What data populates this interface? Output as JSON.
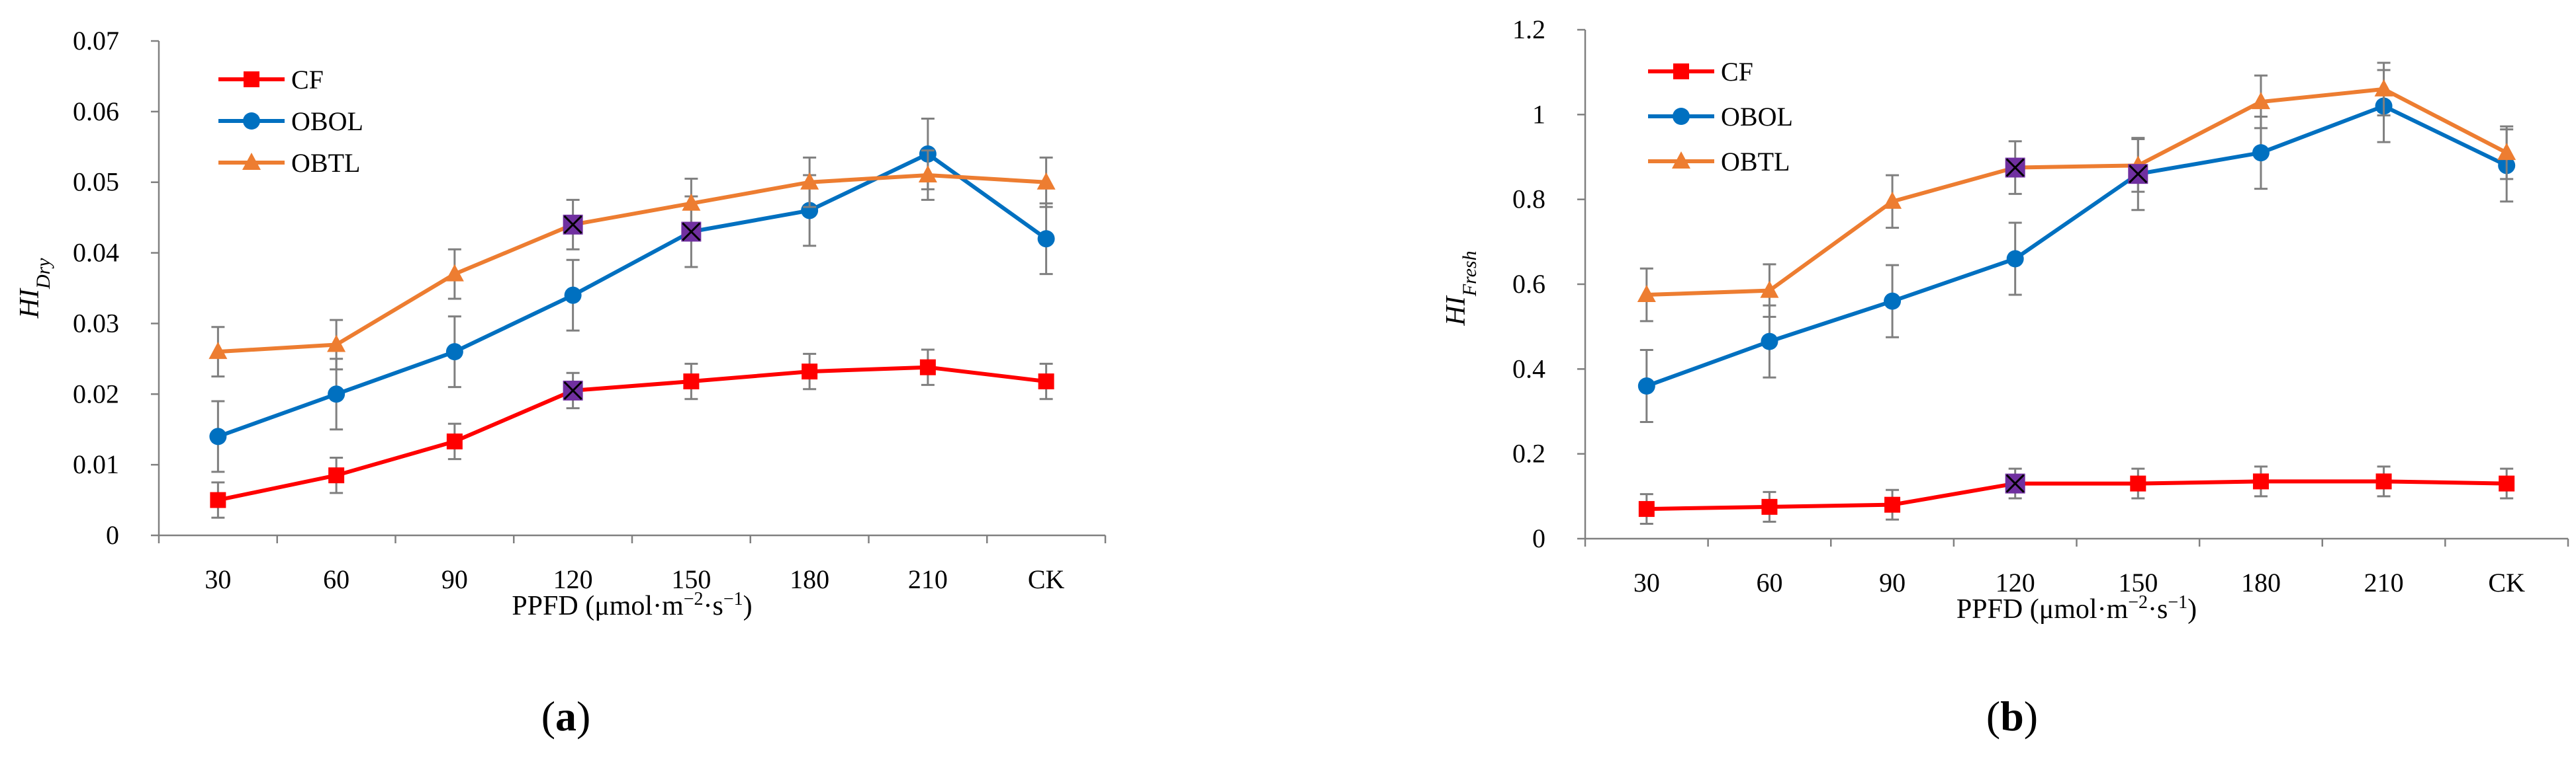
{
  "chart_data": [
    {
      "type": "line",
      "panel_label": "a",
      "title": "",
      "xlabel_html": "PPFD (μmol·m<tspan baseline-shift=\"super\" font-size=\"28\">−2</tspan>·s<tspan baseline-shift=\"super\" font-size=\"28\">−1</tspan>)",
      "xlabel": "PPFD (μmol·m−2·s−1)",
      "ylabel_main": "HI",
      "ylabel_sub": "Dry",
      "categories": [
        "30",
        "60",
        "90",
        "120",
        "150",
        "180",
        "210",
        "CK"
      ],
      "ylim": [
        0,
        0.07
      ],
      "yticks": [
        0,
        0.01,
        0.02,
        0.03,
        0.04,
        0.05,
        0.06,
        0.07
      ],
      "ytick_labels": [
        "0",
        "0.01",
        "0.02",
        "0.03",
        "0.04",
        "0.05",
        "0.06",
        "0.07"
      ],
      "legend_position": "top-left",
      "grid": false,
      "series": [
        {
          "name": "CF",
          "color": "#ff0000",
          "marker": "square",
          "values": [
            0.005,
            0.0085,
            0.0133,
            0.0205,
            0.0218,
            0.0232,
            0.0238,
            0.0218
          ],
          "errors": [
            0.0025,
            0.0025,
            0.0025,
            0.0025,
            0.0025,
            0.0025,
            0.0025,
            0.0025
          ]
        },
        {
          "name": "OBOL",
          "color": "#0070c0",
          "marker": "circle",
          "values": [
            0.014,
            0.02,
            0.026,
            0.034,
            0.043,
            0.046,
            0.054,
            0.042
          ],
          "errors": [
            0.005,
            0.005,
            0.005,
            0.005,
            0.005,
            0.005,
            0.005,
            0.005
          ]
        },
        {
          "name": "OBTL",
          "color": "#ed7d31",
          "marker": "triangle",
          "values": [
            0.026,
            0.027,
            0.037,
            0.044,
            0.047,
            0.05,
            0.051,
            0.05
          ],
          "errors": [
            0.0035,
            0.0035,
            0.0035,
            0.0035,
            0.0035,
            0.0035,
            0.0035,
            0.0035
          ]
        }
      ],
      "highlights": [
        {
          "series": "CF",
          "category": "120",
          "value": 0.0205
        },
        {
          "series": "OBTL",
          "category": "120",
          "value": 0.044
        },
        {
          "series": "OBOL",
          "category": "150",
          "value": 0.043
        }
      ],
      "highlight_color": "#7030a0"
    },
    {
      "type": "line",
      "panel_label": "b",
      "title": "",
      "xlabel_html": "PPFD (μmol·m<tspan baseline-shift=\"super\" font-size=\"28\">−2</tspan>·s<tspan baseline-shift=\"super\" font-size=\"28\">−1</tspan>)",
      "xlabel": "PPFD (μmol·m−2·s−1)",
      "ylabel_main": "HI",
      "ylabel_sub": "Fresh",
      "categories": [
        "30",
        "60",
        "90",
        "120",
        "150",
        "180",
        "210",
        "CK"
      ],
      "ylim": [
        0,
        1.2
      ],
      "yticks": [
        0,
        0.2,
        0.4,
        0.6,
        0.8,
        1.0,
        1.2
      ],
      "ytick_labels": [
        "0",
        "0.2",
        "0.4",
        "0.6",
        "0.8",
        "1",
        "1.2"
      ],
      "legend_position": "top-left",
      "grid": false,
      "series": [
        {
          "name": "CF",
          "color": "#ff0000",
          "marker": "square",
          "values": [
            0.07,
            0.075,
            0.08,
            0.13,
            0.13,
            0.135,
            0.135,
            0.13
          ],
          "errors": [
            0.035,
            0.035,
            0.035,
            0.035,
            0.035,
            0.035,
            0.035,
            0.035
          ]
        },
        {
          "name": "OBOL",
          "color": "#0070c0",
          "marker": "circle",
          "values": [
            0.36,
            0.465,
            0.56,
            0.66,
            0.86,
            0.91,
            1.02,
            0.88
          ],
          "errors": [
            0.085,
            0.085,
            0.085,
            0.085,
            0.085,
            0.085,
            0.085,
            0.085
          ]
        },
        {
          "name": "OBTL",
          "color": "#ed7d31",
          "marker": "triangle",
          "values": [
            0.575,
            0.585,
            0.795,
            0.875,
            0.88,
            1.03,
            1.06,
            0.91
          ],
          "errors": [
            0.062,
            0.062,
            0.062,
            0.062,
            0.062,
            0.062,
            0.062,
            0.062
          ]
        }
      ],
      "highlights": [
        {
          "series": "OBTL",
          "category": "120",
          "value": 0.875
        },
        {
          "series": "CF",
          "category": "120",
          "value": 0.13
        },
        {
          "series": "OBOL",
          "category": "150",
          "value": 0.86
        }
      ],
      "highlight_color": "#7030a0"
    }
  ]
}
